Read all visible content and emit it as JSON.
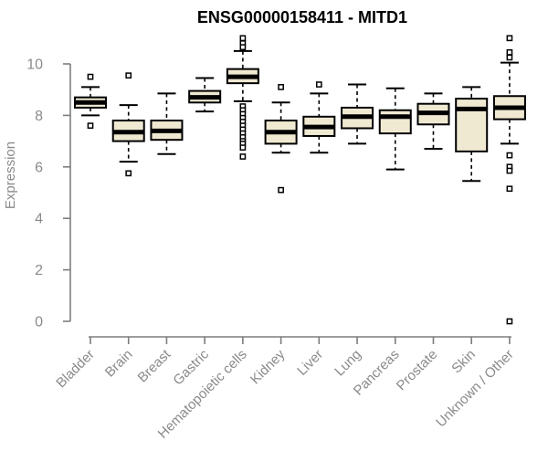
{
  "chart_data": {
    "type": "boxplot",
    "title": "ENSG00000158411 - MITD1",
    "xlabel": "",
    "ylabel": "Expression",
    "ylim": [
      0,
      11.2
    ],
    "yticks": [
      0,
      2,
      4,
      6,
      8,
      10
    ],
    "grid": false,
    "legend": "none",
    "colors": {
      "box_fill": "#f0e9d2",
      "box_border": "#000000",
      "median": "#000000",
      "whisker": "#000000",
      "outlier": "#000000",
      "axis": "#7d7d7d",
      "tick_label": "#8a8a8a",
      "title": "#000000",
      "background": "#ffffff"
    },
    "categories": [
      "Bladder",
      "Brain",
      "Breast",
      "Gastric",
      "Hematopoietic cells",
      "Kidney",
      "Liver",
      "Lung",
      "Pancreas",
      "Prostate",
      "Skin",
      "Unknown / Other"
    ],
    "boxes": [
      {
        "category": "Bladder",
        "whisker_low": 8.0,
        "q1": 8.3,
        "median": 8.5,
        "q3": 8.7,
        "whisker_high": 9.1,
        "outliers": [
          9.5,
          7.6
        ]
      },
      {
        "category": "Brain",
        "whisker_low": 6.2,
        "q1": 7.0,
        "median": 7.35,
        "q3": 7.8,
        "whisker_high": 8.4,
        "outliers": [
          9.55,
          5.75
        ]
      },
      {
        "category": "Breast",
        "whisker_low": 6.5,
        "q1": 7.05,
        "median": 7.4,
        "q3": 7.8,
        "whisker_high": 8.85,
        "outliers": []
      },
      {
        "category": "Gastric",
        "whisker_low": 8.15,
        "q1": 8.5,
        "median": 8.7,
        "q3": 8.95,
        "whisker_high": 9.45,
        "outliers": []
      },
      {
        "category": "Hematopoietic cells",
        "whisker_low": 8.55,
        "q1": 9.25,
        "median": 9.5,
        "q3": 9.8,
        "whisker_high": 10.5,
        "outliers": [
          11.0,
          10.8,
          10.65,
          8.35,
          8.2,
          8.05,
          7.9,
          7.75,
          7.6,
          7.45,
          7.3,
          7.15,
          7.0,
          6.9,
          6.75,
          6.4
        ]
      },
      {
        "category": "Kidney",
        "whisker_low": 6.55,
        "q1": 6.9,
        "median": 7.35,
        "q3": 7.8,
        "whisker_high": 8.5,
        "outliers": [
          9.1,
          5.1
        ]
      },
      {
        "category": "Liver",
        "whisker_low": 6.55,
        "q1": 7.2,
        "median": 7.55,
        "q3": 7.95,
        "whisker_high": 8.85,
        "outliers": [
          9.2
        ]
      },
      {
        "category": "Lung",
        "whisker_low": 6.9,
        "q1": 7.5,
        "median": 7.95,
        "q3": 8.3,
        "whisker_high": 9.2,
        "outliers": []
      },
      {
        "category": "Pancreas",
        "whisker_low": 5.9,
        "q1": 7.3,
        "median": 7.95,
        "q3": 8.2,
        "whisker_high": 9.05,
        "outliers": []
      },
      {
        "category": "Prostate",
        "whisker_low": 6.7,
        "q1": 7.65,
        "median": 8.1,
        "q3": 8.45,
        "whisker_high": 8.85,
        "outliers": []
      },
      {
        "category": "Skin",
        "whisker_low": 5.45,
        "q1": 6.6,
        "median": 8.25,
        "q3": 8.65,
        "whisker_high": 9.1,
        "outliers": []
      },
      {
        "category": "Unknown / Other",
        "whisker_low": 6.9,
        "q1": 7.85,
        "median": 8.3,
        "q3": 8.75,
        "whisker_high": 10.05,
        "outliers": [
          11.0,
          10.45,
          10.25,
          6.45,
          6.0,
          5.85,
          5.15,
          0.0
        ]
      }
    ]
  }
}
